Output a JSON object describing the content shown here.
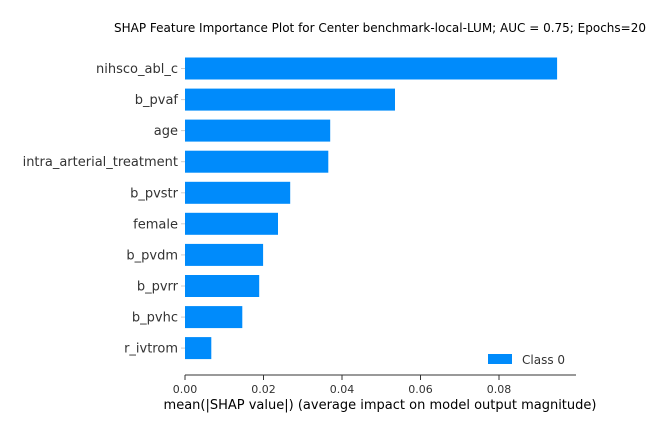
{
  "chart_data": {
    "type": "bar",
    "orientation": "horizontal",
    "title": "SHAP Feature Importance Plot for Center benchmark-local-LUM; AUC = 0.75; Epochs=20",
    "xlabel": "mean(|SHAP value|) (average impact on model output magnitude)",
    "ylabel": "",
    "categories": [
      "nihsco_abl_c",
      "b_pvaf",
      "age",
      "intra_arterial_treatment",
      "b_pvstr",
      "female",
      "b_pvdm",
      "b_pvrr",
      "b_pvhc",
      "r_ivtrom"
    ],
    "series": [
      {
        "name": "Class 0",
        "color": "#008bfb",
        "values": [
          0.0948,
          0.0535,
          0.037,
          0.0365,
          0.0268,
          0.0237,
          0.0199,
          0.0189,
          0.0146,
          0.0067
        ]
      }
    ],
    "xlim": [
      0,
      0.1
    ],
    "xticks": [
      0.0,
      0.02,
      0.04,
      0.06,
      0.08
    ],
    "xtick_labels": [
      "0.00",
      "0.02",
      "0.04",
      "0.06",
      "0.08"
    ],
    "grid": false,
    "legend_position": "lower-right"
  }
}
